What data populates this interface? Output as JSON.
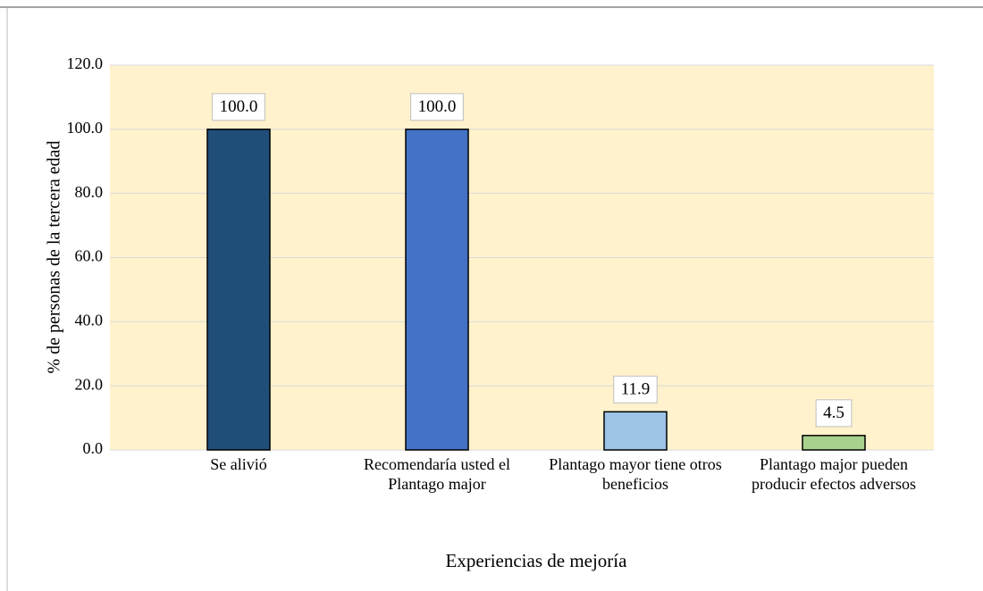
{
  "chart_data": {
    "type": "bar",
    "x_label": "Experiencias de mejoría",
    "y_label": "% de personas de la tercera edad",
    "categories": [
      "Se alivió",
      "Recomendaría usted el Plantago major",
      "Plantago mayor tiene otros beneficios",
      "Plantago major pueden producir efectos adversos"
    ],
    "values": [
      100,
      100,
      11.9,
      4.5
    ],
    "value_labels": [
      "100.0",
      "100.0",
      "11.9",
      "4.5"
    ],
    "colors": [
      "#1f4e79",
      "#4472c4",
      "#9dc3e6",
      "#a9d18e"
    ],
    "ylim": [
      0,
      120
    ],
    "yticks": [
      {
        "value": 0,
        "label": "0.0"
      },
      {
        "value": 20,
        "label": "20.0"
      },
      {
        "value": 40,
        "label": "40.0"
      },
      {
        "value": 60,
        "label": "60.0"
      },
      {
        "value": 80,
        "label": "80.0"
      },
      {
        "value": 100,
        "label": "100.0"
      },
      {
        "value": 120,
        "label": "120.0"
      }
    ],
    "grid": true
  }
}
